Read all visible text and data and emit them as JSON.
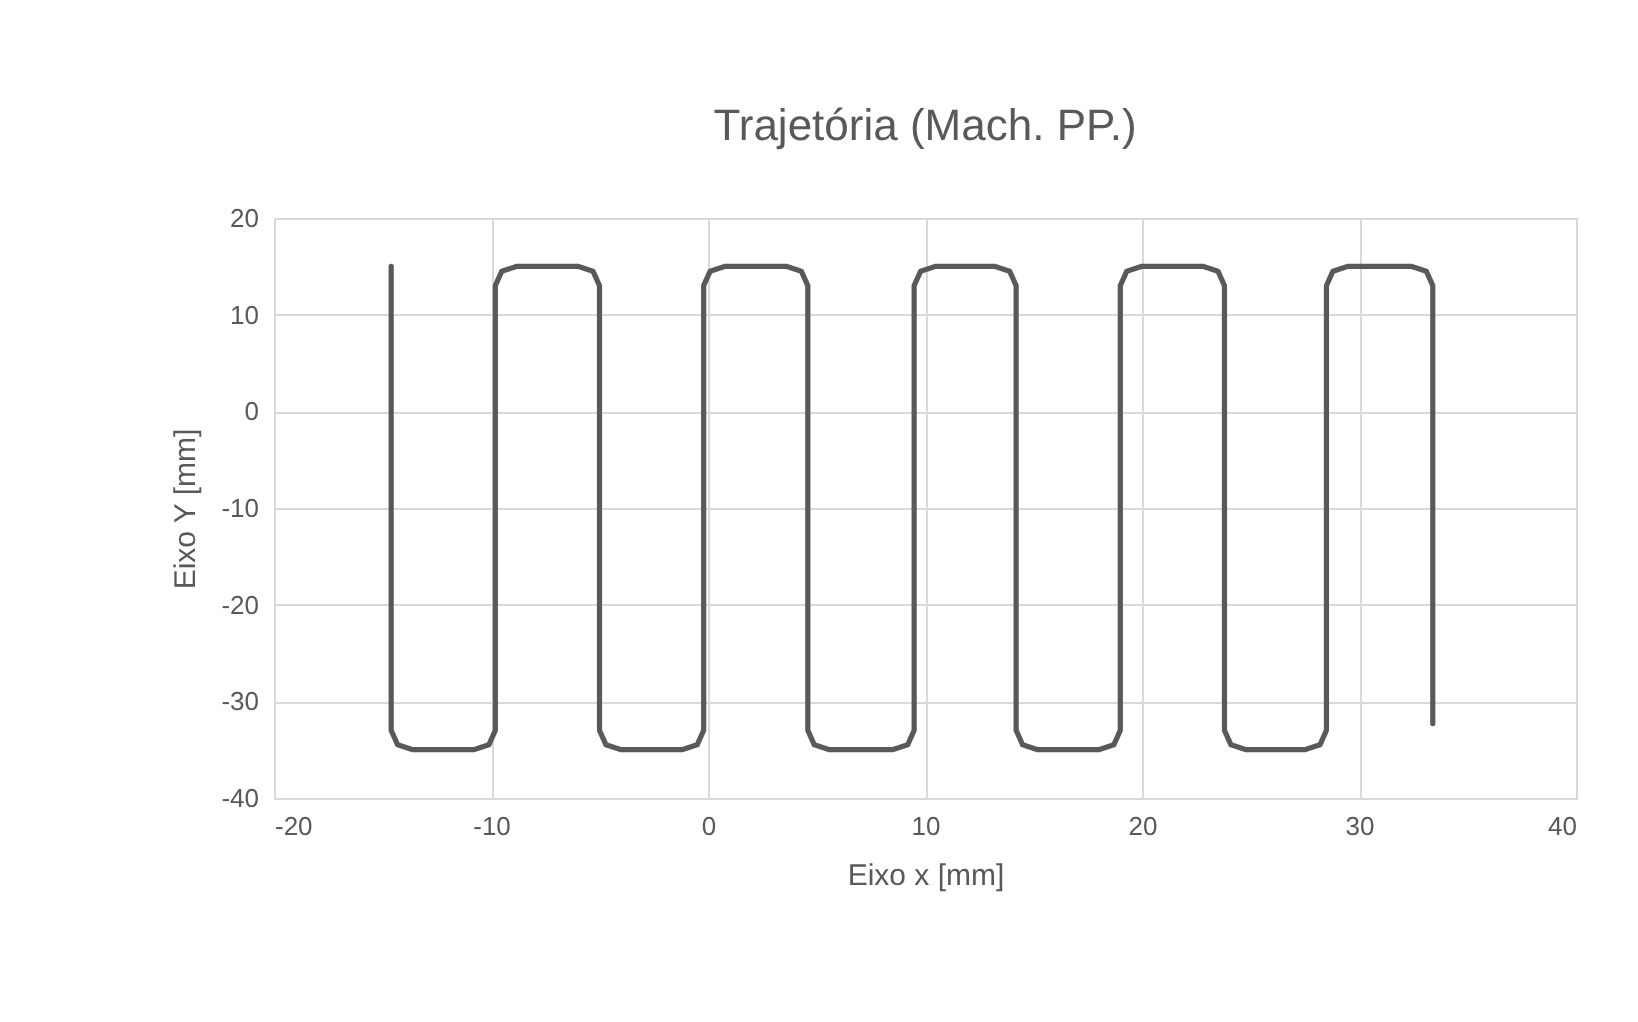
{
  "chart_data": {
    "type": "line",
    "title": "Trajetória (Mach. PP.)",
    "xlabel": "Eixo x [mm]",
    "ylabel": "Eixo Y [mm]",
    "xlim": [
      -20,
      40
    ],
    "xticks": [
      -20,
      -10,
      0,
      10,
      20,
      30,
      40
    ],
    "ylim": [
      -40,
      20
    ],
    "yticks": [
      -40,
      -30,
      -20,
      -10,
      0,
      10,
      20
    ],
    "grid": true,
    "marker": "none",
    "line_style": "solid",
    "series": [
      {
        "color": "#595959",
        "x": [
          -14.6,
          -14.6,
          -14.3,
          -13.6,
          -10.8,
          -10.1,
          -9.8,
          -9.8,
          -9.5,
          -8.8,
          -6.0,
          -5.3,
          -5.0,
          -5.0,
          -4.7,
          -4.0,
          -1.2,
          -0.5,
          -0.2,
          -0.2,
          0.1,
          0.8,
          3.6,
          4.3,
          4.6,
          4.6,
          4.9,
          5.6,
          8.5,
          9.2,
          9.5,
          9.5,
          9.8,
          10.5,
          13.2,
          13.9,
          14.2,
          14.2,
          14.5,
          15.2,
          18.0,
          18.7,
          19.0,
          19.0,
          19.3,
          20.0,
          22.8,
          23.5,
          23.8,
          23.8,
          24.1,
          24.8,
          27.5,
          28.2,
          28.5,
          28.5,
          28.8,
          29.5,
          32.4,
          33.1,
          33.4,
          33.4
        ],
        "values": [
          15,
          -33,
          -34.5,
          -35,
          -35,
          -34.5,
          -33,
          13,
          14.5,
          15,
          15,
          14.5,
          13,
          -33,
          -34.5,
          -35,
          -35,
          -34.5,
          -33,
          13,
          14.5,
          15,
          15,
          14.5,
          13,
          -33,
          -34.5,
          -35,
          -35,
          -34.5,
          -33,
          13,
          14.5,
          15,
          15,
          14.5,
          13,
          -33,
          -34.5,
          -35,
          -35,
          -34.5,
          -33,
          13,
          14.5,
          15,
          15,
          14.5,
          13,
          -33,
          -34.5,
          -35,
          -35,
          -34.5,
          -33,
          13,
          14.5,
          15,
          15,
          14.5,
          13,
          -32.3
        ]
      }
    ]
  }
}
